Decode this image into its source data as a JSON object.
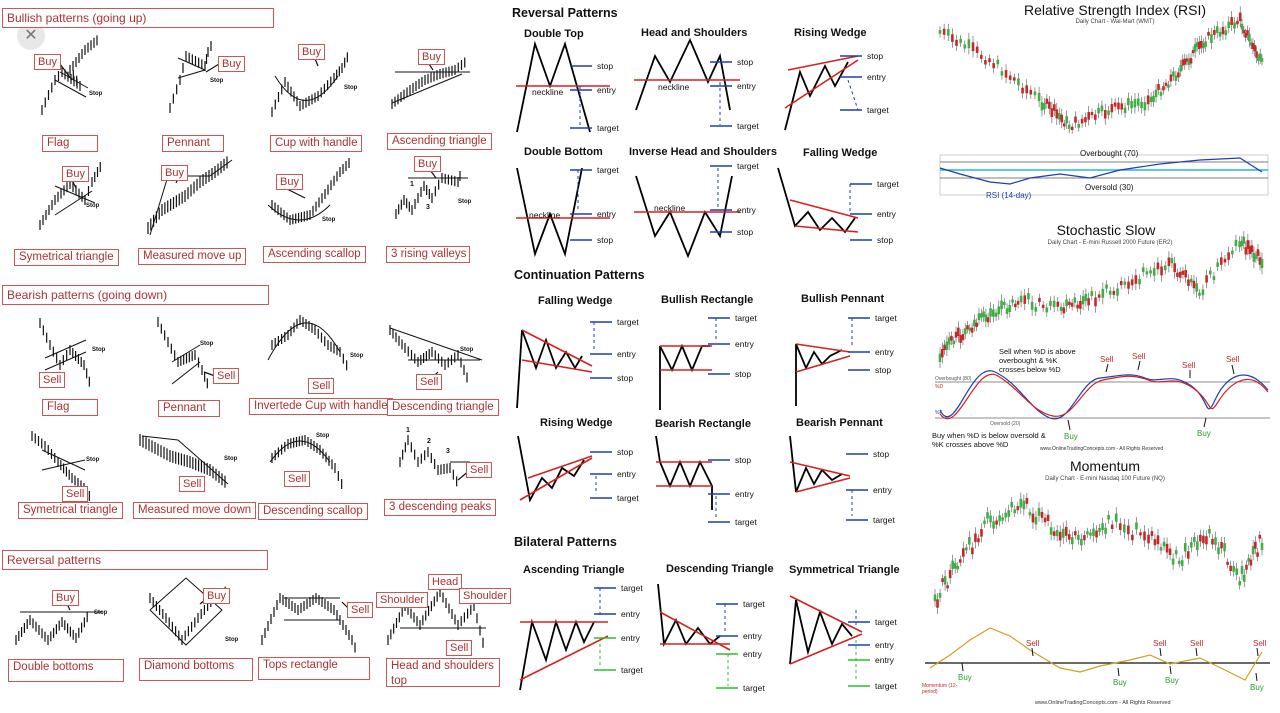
{
  "left": {
    "bullish": {
      "header": "Bullish patterns (going up)",
      "items": [
        {
          "label": "Flag",
          "tag": "Buy"
        },
        {
          "label": "Pennant",
          "tag": "Buy"
        },
        {
          "label": "Cup with handle",
          "tag": "Buy"
        },
        {
          "label": "Ascending triangle",
          "tag": "Buy"
        },
        {
          "label": "Symetrical triangle",
          "tag": "Buy"
        },
        {
          "label": "Measured move up",
          "tag": "Buy"
        },
        {
          "label": "Ascending scallop",
          "tag": "Buy"
        },
        {
          "label": "3 rising valleys",
          "tag": "Buy"
        }
      ]
    },
    "bearish": {
      "header": "Bearish patterns (going down)",
      "items": [
        {
          "label": "Flag",
          "tag": "Sell"
        },
        {
          "label": "Pennant",
          "tag": "Sell"
        },
        {
          "label": "Invertede Cup with handle",
          "tag": "Sell"
        },
        {
          "label": "Descending triangle",
          "tag": "Sell"
        },
        {
          "label": "Symetrical triangle",
          "tag": "Sell"
        },
        {
          "label": "Measured move down",
          "tag": "Sell"
        },
        {
          "label": "Descending scallop",
          "tag": "Sell"
        },
        {
          "label": "3 descending peaks",
          "tag": "Sell"
        }
      ]
    },
    "reversal": {
      "header": "Reversal patterns",
      "items": [
        {
          "label": "Double bottoms",
          "tag": "Buy"
        },
        {
          "label": "Diamond bottoms",
          "tag": "Buy"
        },
        {
          "label": "Tops rectangle",
          "tag": "Sell"
        },
        {
          "label": "Head and shoulders top",
          "tag": "Sell"
        }
      ]
    },
    "stop_text": "Stop",
    "head_text": "Head",
    "shoulder_text": "Shoulder",
    "nums": [
      "1",
      "2",
      "3"
    ]
  },
  "close_icon": "close-icon",
  "middle": {
    "reversal": {
      "header": "Reversal Patterns",
      "patterns": [
        "Double Top",
        "Head and Shoulders",
        "Rising Wedge",
        "Double Bottom",
        "Inverse Head and Shoulders",
        "Falling Wedge"
      ]
    },
    "continuation": {
      "header": "Continuation Patterns",
      "patterns": [
        "Falling Wedge",
        "Bullish Rectangle",
        "Bullish Pennant",
        "Rising Wedge",
        "Bearish Rectangle",
        "Bearish Pennant"
      ]
    },
    "bilateral": {
      "header": "Bilateral Patterns",
      "patterns": [
        "Ascending Triangle",
        "Descending Triangle",
        "Symmetrical Triangle"
      ]
    },
    "labels": {
      "stop": "stop",
      "entry": "entry",
      "target": "target",
      "neckline": "neckline"
    }
  },
  "right": {
    "rsi": {
      "title": "Relative Strength Index (RSI)",
      "subtitle": "Daily Chart - Wal-Mart (WMT)",
      "overbought": "Overbought (70)",
      "oversold": "Oversold (30)",
      "indicator": "RSI (14-day)"
    },
    "stochastic": {
      "title": "Stochastic Slow",
      "subtitle": "Daily Chart - E-mini Russell 2000 Future (ER2)",
      "overbought": "Overbought (80)",
      "oversold": "Oversold (20)",
      "pd": "%D",
      "pk": "%K",
      "sell_note": "Sell when %D is above overbought & %K crosses below %D",
      "buy_note": "Buy when %D is below oversold & %K crosses above %D",
      "sell": "Sell",
      "buy": "Buy",
      "footer": "www.OnlineTradingConcepts.com - All Rights Reserved"
    },
    "momentum": {
      "title": "Momentum",
      "subtitle": "Daily Chart - E-mini Nasdaq 100 Future (NQ)",
      "indicator": "Momentum (12-period)",
      "sell": "Sell",
      "buy": "Buy",
      "footer": "www.OnlineTradingConcepts.com - All Rights Reserved"
    }
  },
  "colors": {
    "label_red": "#aa3333",
    "line_red": "#d62020",
    "up_green": "#3cb043",
    "down_red": "#c62828",
    "blue": "#1f3fb0",
    "green_target": "#2bbf2b"
  }
}
